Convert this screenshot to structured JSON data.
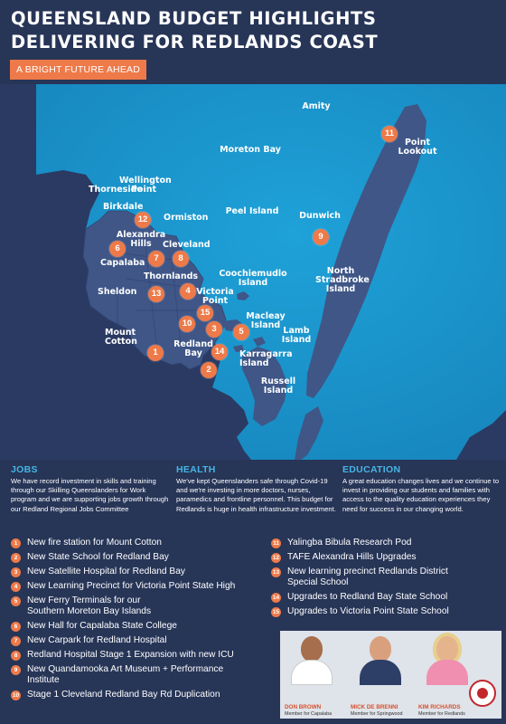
{
  "header": {
    "title_line1": "QUEENSLAND BUDGET HIGHLIGHTS",
    "title_line2": "DELIVERING FOR REDLANDS COAST",
    "tagline": "A BRIGHT FUTURE AHEAD"
  },
  "map": {
    "labels": [
      "Amity",
      "Moreton Bay",
      "Point\nLookout",
      "Wellington\nPoint",
      "Thorneside",
      "Birkdale",
      "Ormiston",
      "Peel Island",
      "Dunwich",
      "Alexandra\nHills",
      "Cleveland",
      "Capalaba",
      "Thornlands",
      "Coochiemudlo\nIsland",
      "North\nStradbroke\nIsland",
      "Sheldon",
      "Victoria\nPoint",
      "Macleay Island",
      "Mount Cotton",
      "Lamb\nIsland",
      "Redland\nBay",
      "Karragarra Island",
      "Russell\nIsland"
    ],
    "markers": [
      "1",
      "2",
      "3",
      "4",
      "5",
      "6",
      "7",
      "8",
      "9",
      "10",
      "11",
      "12",
      "13",
      "14",
      "15"
    ]
  },
  "sections": [
    {
      "heading": "JOBS",
      "text": "We have record investment in skills and training through our Skilling Queenslanders for Work program and we are supporting jobs growth through our Redland Regional Jobs Committee"
    },
    {
      "heading": "HEALTH",
      "text": "We've kept Queenslanders safe through Covid-19 and we're investing in more doctors, nurses, paramedics and frontline personnel. This budget for Redlands is huge in health infrastructure investment."
    },
    {
      "heading": "EDUCATION",
      "text": "A great education changes lives and we continue to invest in providing our students and families with access to the quality education experiences they need for success in our changing world."
    }
  ],
  "items": [
    {
      "n": "1",
      "text": "New fire station for Mount Cotton"
    },
    {
      "n": "2",
      "text": "New State School for Redland Bay"
    },
    {
      "n": "3",
      "text": "New Satellite Hospital for Redland Bay"
    },
    {
      "n": "4",
      "text": "New Learning Precinct for Victoria Point State High"
    },
    {
      "n": "5",
      "text": "New Ferry Terminals for our",
      "text2": "Southern Moreton Bay Islands"
    },
    {
      "n": "6",
      "text": "New Hall for Capalaba State College"
    },
    {
      "n": "7",
      "text": "New Carpark for Redland Hospital"
    },
    {
      "n": "8",
      "text": "Redland Hospital Stage 1 Expansion with new ICU"
    },
    {
      "n": "9",
      "text": "New Quandamooka Art Museum + Performance",
      "text2": "Institute"
    },
    {
      "n": "10",
      "text": "Stage 1 Cleveland Redland Bay Rd Duplication"
    },
    {
      "n": "11",
      "text": "Yalingba Bibula Research Pod"
    },
    {
      "n": "12",
      "text": "TAFE Alexandra Hills Upgrades"
    },
    {
      "n": "13",
      "text": "New learning precinct Redlands District",
      "text2": "Special School"
    },
    {
      "n": "14",
      "text": "Upgrades to Redland Bay State School"
    },
    {
      "n": "15",
      "text": "Upgrades to Victoria Point State School"
    }
  ],
  "members": [
    {
      "name": "DON BROWN",
      "role": "Member for Capalaba"
    },
    {
      "name": "MICK DE BRENNI",
      "role": "Member for Springwood"
    },
    {
      "name": "KIM RICHARDS",
      "role": "Member for Redlands"
    }
  ],
  "colors": {
    "background": "#273557",
    "accent": "#ee7a49",
    "sea": "#1b95cf",
    "land": "#3f5687",
    "heading": "#45b6e5"
  }
}
